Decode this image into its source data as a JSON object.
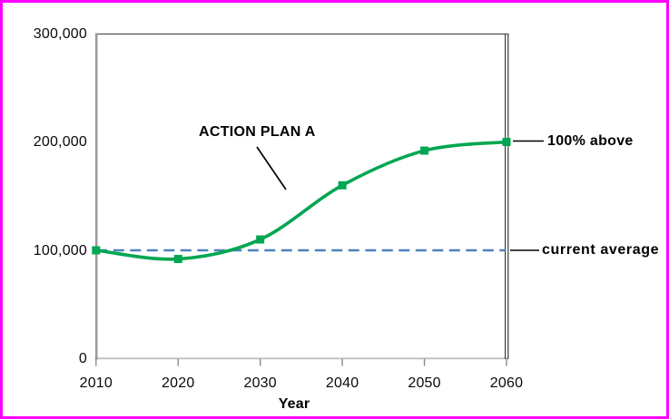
{
  "frame": {
    "border_color": "#FF00FF",
    "background_color": "#FFFFFF"
  },
  "chart_data": {
    "type": "line",
    "title": "",
    "xlabel": "Year",
    "ylabel": "",
    "x": [
      2010,
      2020,
      2030,
      2040,
      2050,
      2060
    ],
    "xtick_labels": [
      "2010",
      "2020",
      "2030",
      "2040",
      "2050",
      "2060"
    ],
    "ytick_values": [
      0,
      100000,
      200000,
      300000
    ],
    "ytick_labels": [
      "0",
      "100,000",
      "200,000",
      "300,000"
    ],
    "xlim": [
      2010,
      2060
    ],
    "ylim": [
      0,
      300000
    ],
    "grid": false,
    "legend": "none",
    "series": [
      {
        "name": "ACTION PLAN A",
        "type": "smooth-line",
        "marker": "square",
        "color": "#00A651",
        "values": [
          100000,
          92000,
          110000,
          160000,
          192000,
          200000
        ]
      },
      {
        "name": "current average",
        "type": "dashed-horizontal-line",
        "color": "#4F81BD",
        "value": 100000
      }
    ],
    "annotations": [
      {
        "id": "action-plan-a",
        "text": "ACTION PLAN A"
      },
      {
        "id": "hundred-percent-above",
        "text": "100% above"
      },
      {
        "id": "current-average",
        "text": "current average"
      }
    ]
  }
}
